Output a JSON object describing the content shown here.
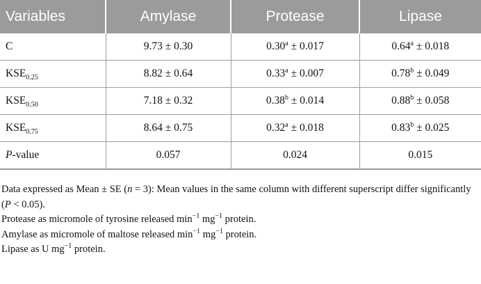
{
  "table": {
    "headers": [
      "Variables",
      "Amylase",
      "Protease",
      "Lipase"
    ],
    "rows": [
      {
        "label": "C",
        "label_sub": "",
        "amylase": "9.73 ± 0.30",
        "protease_val": "0.30",
        "protease_sup": "a",
        "protease_se": "± 0.017",
        "lipase_val": "0.64",
        "lipase_sup": "a",
        "lipase_se": "± 0.018"
      },
      {
        "label": "KSE",
        "label_sub": "0.25",
        "amylase": "8.82 ± 0.64",
        "protease_val": "0.33",
        "protease_sup": "a",
        "protease_se": "± 0.007",
        "lipase_val": "0.78",
        "lipase_sup": "b",
        "lipase_se": "± 0.049"
      },
      {
        "label": "KSE",
        "label_sub": "0.50",
        "amylase": "7.18 ± 0.32",
        "protease_val": "0.38",
        "protease_sup": "b",
        "protease_se": "± 0.014",
        "lipase_val": "0.88",
        "lipase_sup": "b",
        "lipase_se": "± 0.058"
      },
      {
        "label": "KSE",
        "label_sub": "0.75",
        "amylase": "8.64 ± 0.75",
        "protease_val": "0.32",
        "protease_sup": "a",
        "protease_se": "± 0.018",
        "lipase_val": "0.83",
        "lipase_sup": "b",
        "lipase_se": "± 0.025"
      }
    ],
    "pvalue_row": {
      "label_italic": "P",
      "label_rest": "-value",
      "amylase": "0.057",
      "protease": "0.024",
      "lipase": "0.015"
    }
  },
  "footnotes": {
    "line1_a": "Data expressed as Mean ± SE (",
    "line1_n": "n",
    "line1_b": " = 3): Mean values in the same column with different superscript differ significantly (",
    "line1_p": "P",
    "line1_c": " < 0.05).",
    "line2_a": "Protease as micromole of tyrosine released min",
    "line2_sup1": "−1",
    "line2_b": " mg",
    "line2_sup2": "−1",
    "line2_c": " protein.",
    "line3_a": "Amylase as micromole of maltose released min",
    "line3_sup1": "−1",
    "line3_b": " mg",
    "line3_sup2": "−1",
    "line3_c": " protein.",
    "line4_a": "Lipase as U mg",
    "line4_sup": "−1",
    "line4_b": " protein."
  }
}
